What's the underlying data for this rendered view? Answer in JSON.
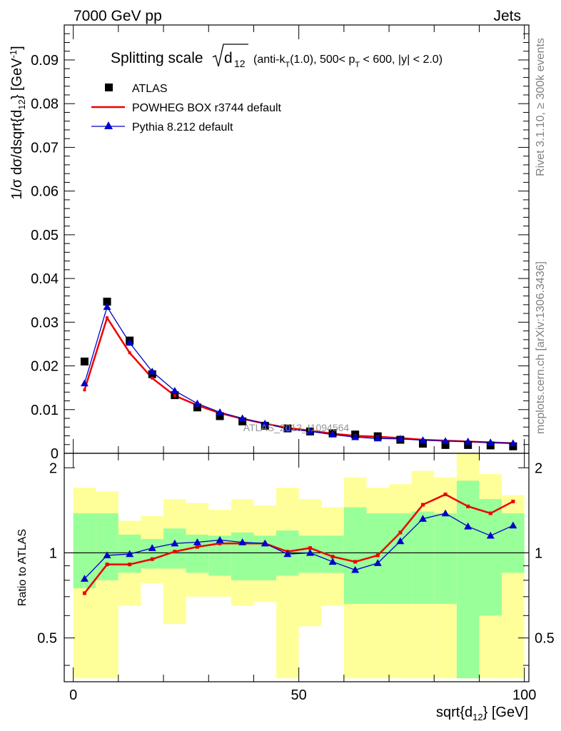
{
  "header": {
    "left": "7000 GeV pp",
    "right": "Jets"
  },
  "side_labels": {
    "rivet": "Rivet 3.1.10, ≥ 300k events",
    "mcplots": "mcplots.cern.ch [arXiv:1306.3436]"
  },
  "watermark": "ATLAS_2013_I1094564",
  "plot_title": {
    "prefix": "Splitting scale ",
    "radicand": "d",
    "radicand_sub": "12",
    "suffix_pre": " (anti-k",
    "suffix_pre_sub": "T",
    "suffix_mid": "(1.0), 500< p",
    "suffix_mid_sub": "T",
    "suffix_post": " < 600, |y| < 2.0)"
  },
  "legend": {
    "placement": "top-left",
    "items": [
      {
        "label": "ATLAS",
        "marker": "square"
      },
      {
        "label": "POWHEG BOX r3744 default",
        "marker": "line"
      },
      {
        "label": "Pythia 8.212 default",
        "marker": "triangle"
      }
    ]
  },
  "colors": {
    "data": "#000000",
    "powheg": "#ee0000",
    "pythia": "#0000cc",
    "band_inner": "#99ff99",
    "band_outer": "#ffff99"
  },
  "chart_data": [
    {
      "type": "scatter",
      "ylabel": "1/σ dσ/dsqrt{d12} [GeV⁻¹]",
      "xlim": [
        -2,
        101
      ],
      "ylim": [
        0,
        0.098
      ],
      "yticks": [
        "0",
        "0.01",
        "0.02",
        "0.03",
        "0.04",
        "0.05",
        "0.06",
        "0.07",
        "0.08",
        "0.09"
      ],
      "ytick_values": [
        0,
        0.01,
        0.02,
        0.03,
        0.04,
        0.05,
        0.06,
        0.07,
        0.08,
        0.09
      ],
      "x": [
        2.5,
        7.5,
        12.5,
        17.5,
        22.5,
        27.5,
        32.5,
        37.5,
        42.5,
        47.5,
        52.5,
        57.5,
        62.5,
        67.5,
        72.5,
        77.5,
        82.5,
        87.5,
        92.5,
        97.5
      ],
      "series": [
        {
          "name": "ATLAS",
          "values": [
            0.021,
            0.0347,
            0.0258,
            0.0181,
            0.0133,
            0.0105,
            0.0085,
            0.0073,
            0.0063,
            0.0057,
            0.005,
            0.0046,
            0.0043,
            0.0039,
            0.0031,
            0.0022,
            0.0019,
            0.0019,
            0.0018,
            0.0016
          ]
        },
        {
          "name": "POWHEG BOX r3744 default",
          "values": [
            0.0145,
            0.031,
            0.023,
            0.0172,
            0.0132,
            0.011,
            0.0092,
            0.0079,
            0.0068,
            0.0058,
            0.0052,
            0.0045,
            0.004,
            0.0038,
            0.0035,
            0.0031,
            0.0029,
            0.0027,
            0.0025,
            0.0023
          ]
        },
        {
          "name": "Pythia 8.212 default",
          "values": [
            0.016,
            0.0335,
            0.0253,
            0.0187,
            0.0143,
            0.0114,
            0.0094,
            0.008,
            0.0068,
            0.0056,
            0.005,
            0.0043,
            0.0037,
            0.0034,
            0.0033,
            0.003,
            0.0028,
            0.0027,
            0.0025,
            0.0023
          ]
        }
      ]
    },
    {
      "type": "line",
      "ylabel": "Ratio to ATLAS",
      "xlabel": "sqrt{d12} [GeV]",
      "xlim": [
        -2,
        101
      ],
      "ylim": [
        0.35,
        2.25
      ],
      "xticks": [
        "0",
        "50",
        "100"
      ],
      "xtick_values": [
        0,
        50,
        100
      ],
      "yticks": [
        "0.5",
        "1",
        "2"
      ],
      "ytick_values": [
        0.5,
        1,
        2
      ],
      "reference_line": 1,
      "bin_edges": [
        0,
        5,
        10,
        15,
        20,
        25,
        30,
        35,
        40,
        45,
        50,
        55,
        60,
        65,
        70,
        75,
        80,
        85,
        90,
        95,
        100
      ],
      "band_inner": [
        [
          0.75,
          1.38
        ],
        [
          0.8,
          1.38
        ],
        [
          0.85,
          1.16
        ],
        [
          0.88,
          1.12
        ],
        [
          0.88,
          1.22
        ],
        [
          0.85,
          1.16
        ],
        [
          0.83,
          1.15
        ],
        [
          0.8,
          1.18
        ],
        [
          0.8,
          1.15
        ],
        [
          0.83,
          1.2
        ],
        [
          0.85,
          1.15
        ],
        [
          0.85,
          1.15
        ],
        [
          0.66,
          1.45
        ],
        [
          0.66,
          1.38
        ],
        [
          0.66,
          1.38
        ],
        [
          0.66,
          1.4
        ],
        [
          0.66,
          1.38
        ],
        [
          0.36,
          1.8
        ],
        [
          0.6,
          1.55
        ],
        [
          0.85,
          1.38
        ]
      ],
      "band_outer": [
        [
          0.36,
          1.7
        ],
        [
          0.36,
          1.65
        ],
        [
          0.65,
          1.3
        ],
        [
          0.78,
          1.35
        ],
        [
          0.56,
          1.55
        ],
        [
          0.7,
          1.5
        ],
        [
          0.7,
          1.42
        ],
        [
          0.65,
          1.55
        ],
        [
          0.67,
          1.47
        ],
        [
          0.36,
          1.7
        ],
        [
          0.55,
          1.55
        ],
        [
          0.65,
          1.45
        ],
        [
          0.36,
          1.85
        ],
        [
          0.36,
          1.7
        ],
        [
          0.36,
          1.75
        ],
        [
          0.36,
          1.95
        ],
        [
          0.36,
          1.85
        ],
        [
          0.36,
          2.25
        ],
        [
          0.36,
          1.9
        ],
        [
          0.36,
          1.6
        ]
      ],
      "series": [
        {
          "name": "POWHEG BOX r3744 default",
          "values": [
            0.72,
            0.91,
            0.91,
            0.95,
            1.01,
            1.05,
            1.08,
            1.08,
            1.08,
            1.01,
            1.04,
            0.97,
            0.93,
            0.98,
            1.18,
            1.48,
            1.61,
            1.46,
            1.38,
            1.52
          ]
        },
        {
          "name": "Pythia 8.212 default",
          "values": [
            0.81,
            0.98,
            0.99,
            1.04,
            1.08,
            1.09,
            1.11,
            1.09,
            1.08,
            0.99,
            1.0,
            0.93,
            0.87,
            0.92,
            1.1,
            1.32,
            1.38,
            1.24,
            1.15,
            1.25
          ]
        }
      ]
    }
  ]
}
